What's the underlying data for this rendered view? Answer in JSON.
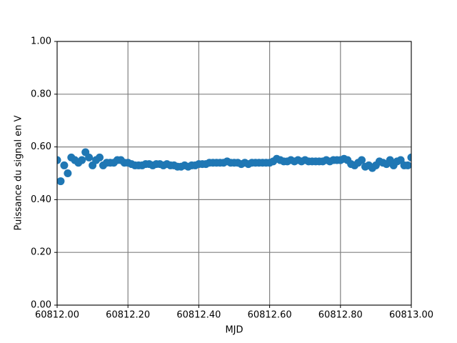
{
  "chart_data": {
    "type": "scatter",
    "xlabel": "MJD",
    "ylabel": "Puissance du signal en V",
    "color": "#1f77b4",
    "grid": true,
    "x": [
      60812,
      60812.01,
      60812.02,
      60812.03,
      60812.04,
      60812.05,
      60812.06,
      60812.07,
      60812.08,
      60812.09,
      60812.1,
      60812.11,
      60812.12,
      60812.13,
      60812.14,
      60812.15,
      60812.16,
      60812.17,
      60812.18,
      60812.19,
      60812.2,
      60812.21,
      60812.22,
      60812.23,
      60812.24,
      60812.25,
      60812.26,
      60812.27,
      60812.28,
      60812.29,
      60812.3,
      60812.31,
      60812.32,
      60812.33,
      60812.34,
      60812.35,
      60812.36,
      60812.37,
      60812.38,
      60812.39,
      60812.4,
      60812.41,
      60812.42,
      60812.43,
      60812.44,
      60812.45,
      60812.46,
      60812.47,
      60812.48,
      60812.49,
      60812.5,
      60812.51,
      60812.52,
      60812.53,
      60812.54,
      60812.55,
      60812.56,
      60812.57,
      60812.58,
      60812.59,
      60812.6,
      60812.61,
      60812.62,
      60812.63,
      60812.64,
      60812.65,
      60812.66,
      60812.67,
      60812.68,
      60812.69,
      60812.7,
      60812.71,
      60812.72,
      60812.73,
      60812.74,
      60812.75,
      60812.76,
      60812.77,
      60812.78,
      60812.79,
      60812.8,
      60812.81,
      60812.82,
      60812.83,
      60812.84,
      60812.85,
      60812.86,
      60812.87,
      60812.88,
      60812.89,
      60812.9,
      60812.91,
      60812.92,
      60812.93,
      60812.94,
      60812.95,
      60812.96,
      60812.97,
      60812.98,
      60812.99,
      60813
    ],
    "values": [
      0.55,
      0.47,
      0.53,
      0.5,
      0.56,
      0.55,
      0.54,
      0.55,
      0.58,
      0.56,
      0.53,
      0.55,
      0.56,
      0.53,
      0.54,
      0.54,
      0.54,
      0.55,
      0.55,
      0.54,
      0.54,
      0.535,
      0.53,
      0.53,
      0.53,
      0.535,
      0.535,
      0.53,
      0.535,
      0.535,
      0.53,
      0.535,
      0.53,
      0.53,
      0.525,
      0.525,
      0.53,
      0.525,
      0.53,
      0.53,
      0.535,
      0.535,
      0.535,
      0.54,
      0.54,
      0.54,
      0.54,
      0.54,
      0.545,
      0.54,
      0.54,
      0.54,
      0.535,
      0.54,
      0.535,
      0.54,
      0.54,
      0.54,
      0.54,
      0.54,
      0.54,
      0.545,
      0.555,
      0.55,
      0.545,
      0.545,
      0.55,
      0.545,
      0.55,
      0.545,
      0.55,
      0.545,
      0.545,
      0.545,
      0.545,
      0.545,
      0.55,
      0.545,
      0.55,
      0.55,
      0.55,
      0.555,
      0.55,
      0.535,
      0.53,
      0.54,
      0.55,
      0.525,
      0.53,
      0.52,
      0.53,
      0.545,
      0.54,
      0.535,
      0.55,
      0.53,
      0.545,
      0.55,
      0.53,
      0.53,
      0.56
    ],
    "xlim": [
      60812,
      60813
    ],
    "xticks": [
      {
        "value": 60812,
        "label": "60812.00"
      },
      {
        "value": 60812.2,
        "label": "60812.20"
      },
      {
        "value": 60812.4,
        "label": "60812.40"
      },
      {
        "value": 60812.6,
        "label": "60812.60"
      },
      {
        "value": 60812.8,
        "label": "60812.80"
      },
      {
        "value": 60813,
        "label": "60813.00"
      }
    ],
    "ylim": [
      0,
      1
    ],
    "yticks": [
      {
        "value": 0,
        "label": "0.00"
      },
      {
        "value": 0.2,
        "label": "0.20"
      },
      {
        "value": 0.4,
        "label": "0.40"
      },
      {
        "value": 0.6,
        "label": "0.60"
      },
      {
        "value": 0.8,
        "label": "0.80"
      },
      {
        "value": 1,
        "label": "1.00"
      }
    ]
  }
}
